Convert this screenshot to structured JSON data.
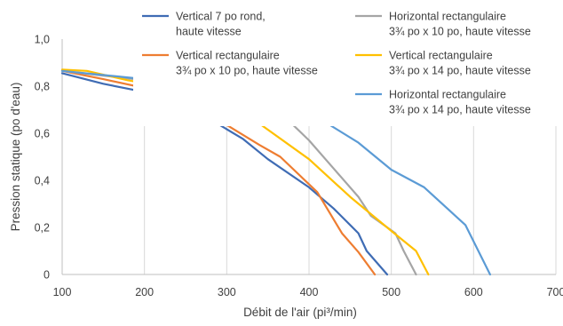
{
  "chart_data": {
    "type": "line",
    "title": "",
    "xlabel": "Débit de l'air (pi³/min)",
    "ylabel": "Pression statique (po d'eau)",
    "xlim": [
      100,
      700
    ],
    "ylim": [
      0,
      1.0
    ],
    "x_ticks": [
      "100",
      "200",
      "300",
      "400",
      "500",
      "600",
      "700"
    ],
    "y_ticks": [
      "0",
      "0,2",
      "0,4",
      "0,6",
      "0,8",
      "1,0"
    ],
    "grid": "vertical",
    "legend_position": "top",
    "series": [
      {
        "name_lines": [
          "Vertical 7 po rond,",
          "haute vitesse"
        ],
        "color": "#3F6CB4",
        "points": [
          [
            100,
            0.855
          ],
          [
            150,
            0.81
          ],
          [
            200,
            0.775
          ],
          [
            230,
            0.75
          ],
          [
            270,
            0.68
          ],
          [
            320,
            0.575
          ],
          [
            350,
            0.49
          ],
          [
            400,
            0.37
          ],
          [
            430,
            0.28
          ],
          [
            460,
            0.175
          ],
          [
            470,
            0.1
          ],
          [
            495,
            0.0
          ]
        ]
      },
      {
        "name_lines": [
          "Vertical rectangulaire",
          "3¾ po x 10 po, haute vitesse"
        ],
        "color": "#EE7D31",
        "points": [
          [
            100,
            0.865
          ],
          [
            150,
            0.83
          ],
          [
            210,
            0.785
          ],
          [
            240,
            0.735
          ],
          [
            300,
            0.635
          ],
          [
            340,
            0.55
          ],
          [
            365,
            0.5
          ],
          [
            410,
            0.35
          ],
          [
            440,
            0.175
          ],
          [
            460,
            0.095
          ],
          [
            480,
            0.0
          ]
        ]
      },
      {
        "name_lines": [
          "Horizontal rectangulaire",
          "3¾ po x 10 po, haute vitesse"
        ],
        "color": "#A5A5A5",
        "points": [
          [
            100,
            0.865
          ],
          [
            150,
            0.845
          ],
          [
            200,
            0.825
          ],
          [
            250,
            0.815
          ],
          [
            300,
            0.8
          ],
          [
            360,
            0.705
          ],
          [
            400,
            0.57
          ],
          [
            430,
            0.45
          ],
          [
            460,
            0.33
          ],
          [
            475,
            0.25
          ],
          [
            505,
            0.175
          ],
          [
            515,
            0.1
          ],
          [
            530,
            0.0
          ]
        ]
      },
      {
        "name_lines": [
          "Vertical rectangulaire",
          "3¾ po x 14 po, haute vitesse"
        ],
        "color": "#FFC000",
        "points": [
          [
            100,
            0.87
          ],
          [
            130,
            0.865
          ],
          [
            180,
            0.825
          ],
          [
            240,
            0.79
          ],
          [
            300,
            0.7
          ],
          [
            340,
            0.64
          ],
          [
            400,
            0.49
          ],
          [
            450,
            0.33
          ],
          [
            500,
            0.185
          ],
          [
            530,
            0.1
          ],
          [
            545,
            0.0
          ]
        ]
      },
      {
        "name_lines": [
          "Horizontal rectangulaire",
          "3¾ po x 14 po, haute vitesse"
        ],
        "color": "#5B9BD5",
        "points": [
          [
            100,
            0.865
          ],
          [
            200,
            0.83
          ],
          [
            290,
            0.805
          ],
          [
            340,
            0.79
          ],
          [
            400,
            0.69
          ],
          [
            460,
            0.56
          ],
          [
            500,
            0.445
          ],
          [
            540,
            0.37
          ],
          [
            590,
            0.21
          ],
          [
            620,
            0.0
          ]
        ]
      }
    ]
  }
}
